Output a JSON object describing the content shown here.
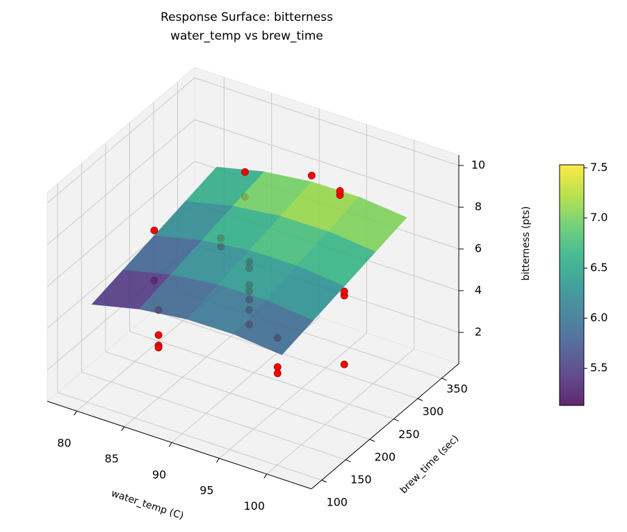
{
  "chart_data": {
    "type": "surface3d",
    "title": "Response Surface: bitterness",
    "subtitle": "water_temp vs brew_time",
    "xlabel": "water_temp (C)",
    "ylabel": "brew_time (sec)",
    "zlabel": "bitterness (pts)",
    "xlim": [
      76.9,
      104.7
    ],
    "ylim": [
      78.5,
      385.5
    ],
    "zlim": [
      0.5,
      10.5
    ],
    "xticks": [
      80,
      85,
      90,
      95,
      100
    ],
    "yticks": [
      100,
      150,
      200,
      250,
      300,
      350
    ],
    "zticks": [
      2,
      4,
      6,
      8,
      10
    ],
    "grid": true,
    "scatter": {
      "color": "#ff0000",
      "x": [
        90,
        90,
        90,
        90,
        90,
        90,
        90,
        85,
        85,
        85,
        85,
        80,
        80,
        100,
        100,
        100,
        90,
        95,
        95,
        85,
        85,
        85,
        85,
        95,
        95,
        95
      ],
      "y": [
        240,
        240,
        240,
        240,
        240,
        240,
        240,
        150,
        150,
        150,
        150,
        240,
        240,
        240,
        240,
        240,
        370,
        330,
        330,
        330,
        330,
        280,
        280,
        200,
        200,
        200
      ],
      "z": [
        6.0,
        5.7,
        4.9,
        4.6,
        4.2,
        3.7,
        3.0,
        3.0,
        2.9,
        3.5,
        4.7,
        3.6,
        6.0,
        5.9,
        6.1,
        2.6,
        7.6,
        8.2,
        8.4,
        7.8,
        6.6,
        5.6,
        5.2,
        3.9,
        2.5,
        2.2
      ]
    },
    "surface": {
      "x": [
        80,
        85,
        90,
        95,
        100
      ],
      "y": [
        110,
        175,
        240,
        305,
        370
      ],
      "z": [
        [
          5.0,
          5.525,
          5.8,
          5.825,
          5.6
        ],
        [
          5.375,
          5.9,
          6.175,
          6.2,
          5.975
        ],
        [
          5.75,
          6.275,
          6.55,
          6.575,
          6.35
        ],
        [
          6.125,
          6.65,
          6.925,
          6.95,
          6.725
        ],
        [
          6.5,
          7.025,
          7.3,
          7.325,
          7.1
        ]
      ]
    },
    "colorbar": {
      "colormap": "viridis",
      "clim": [
        5.13,
        7.53
      ],
      "ticks": [
        5.5,
        {
          "value": 6,
          "label": "6.0"
        },
        6.5,
        {
          "value": 7,
          "label": "7.0"
        },
        7.5
      ]
    }
  }
}
